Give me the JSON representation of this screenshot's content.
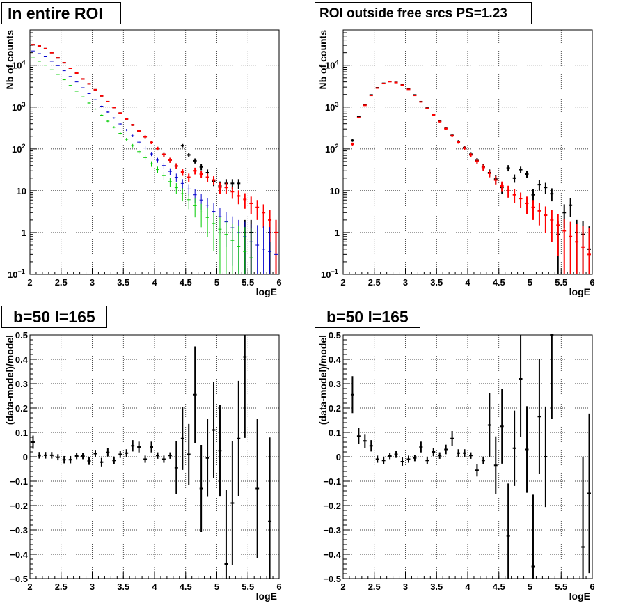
{
  "panels": [
    {
      "title": "In entire ROI",
      "xlabel": "logE",
      "ylabel": "Nb of counts",
      "scale": "log",
      "ylim": [
        0.1,
        70000
      ],
      "xlim": [
        2,
        6
      ],
      "grid": true,
      "xticks": [
        "2",
        "2.5",
        "3",
        "3.5",
        "4",
        "4.5",
        "5",
        "5.5",
        "6"
      ],
      "yticks": [
        {
          "v": 0.1,
          "base": "10",
          "exp": "−1"
        },
        {
          "v": 1,
          "text": "1"
        },
        {
          "v": 10,
          "text": "10"
        },
        {
          "v": 100,
          "base": "10",
          "exp": "2"
        },
        {
          "v": 1000,
          "base": "10",
          "exp": "3"
        },
        {
          "v": 10000,
          "base": "10",
          "exp": "4"
        }
      ]
    },
    {
      "title": "ROI outside free srcs PS=1.23",
      "xlabel": "logE",
      "ylabel": "Nb of counts",
      "scale": "log",
      "ylim": [
        0.1,
        70000
      ],
      "xlim": [
        2,
        6
      ],
      "grid": true,
      "xticks": [
        "2",
        "2.5",
        "3",
        "3.5",
        "4",
        "4.5",
        "5",
        "5.5",
        "6"
      ],
      "yticks": [
        {
          "v": 0.1,
          "base": "10",
          "exp": "−1"
        },
        {
          "v": 1,
          "text": "1"
        },
        {
          "v": 10,
          "text": "10"
        },
        {
          "v": 100,
          "base": "10",
          "exp": "2"
        },
        {
          "v": 1000,
          "base": "10",
          "exp": "3"
        },
        {
          "v": 10000,
          "base": "10",
          "exp": "4"
        }
      ]
    },
    {
      "title": "b=50 l=165",
      "xlabel": "logE",
      "ylabel": "(data-model)/model",
      "scale": "linear",
      "ylim": [
        -0.5,
        0.5
      ],
      "xlim": [
        2,
        6
      ],
      "grid": true,
      "xticks": [
        "2",
        "2.5",
        "3",
        "3.5",
        "4",
        "4.5",
        "5",
        "5.5",
        "6"
      ],
      "yticks": [
        "−0.5",
        "−0.4",
        "−0.3",
        "−0.2",
        "−0.1",
        "0",
        "0.1",
        "0.2",
        "0.3",
        "0.4",
        "0.5"
      ]
    },
    {
      "title": "b=50 l=165",
      "xlabel": "logE",
      "ylabel": "(data-model)/model",
      "scale": "linear",
      "ylim": [
        -0.5,
        0.5
      ],
      "xlim": [
        2,
        6
      ],
      "grid": true,
      "xticks": [
        "2",
        "2.5",
        "3",
        "3.5",
        "4",
        "4.5",
        "5",
        "5.5",
        "6"
      ],
      "yticks": [
        "−0.5",
        "−0.4",
        "−0.3",
        "−0.2",
        "−0.1",
        "0",
        "0.1",
        "0.2",
        "0.3",
        "0.4",
        "0.5"
      ]
    }
  ],
  "chart_data": [
    {
      "type": "scatter",
      "title": "In entire ROI",
      "xlabel": "logE",
      "ylabel": "Nb of counts",
      "xlim": [
        2,
        6
      ],
      "ylim": [
        0.1,
        70000
      ],
      "yscale": "log",
      "x": [
        2.05,
        2.15,
        2.25,
        2.35,
        2.45,
        2.55,
        2.65,
        2.75,
        2.85,
        2.95,
        3.05,
        3.15,
        3.25,
        3.35,
        3.45,
        3.55,
        3.65,
        3.75,
        3.85,
        3.95,
        4.05,
        4.15,
        4.25,
        4.35,
        4.45,
        4.55,
        4.65,
        4.75,
        4.85,
        4.95,
        5.05,
        5.15,
        5.25,
        5.35,
        5.45,
        5.55,
        5.65,
        5.75,
        5.85,
        5.95
      ],
      "series": [
        {
          "color": "#000000",
          "values": [
            31000,
            29000,
            25000,
            20000,
            15000,
            11500,
            8500,
            6500,
            4700,
            3600,
            2600,
            1850,
            1350,
            980,
            720,
            520,
            375,
            270,
            195,
            142,
            102,
            74,
            54,
            39,
            120,
            72,
            52,
            37,
            27,
            17,
            13,
            15,
            15,
            15,
            1,
            1,
            null,
            null,
            1,
            1
          ]
        },
        {
          "color": "#ff0000",
          "values": [
            31000,
            29000,
            25000,
            20000,
            15000,
            11500,
            8500,
            6500,
            4700,
            3600,
            2600,
            1850,
            1350,
            980,
            720,
            520,
            375,
            270,
            195,
            142,
            102,
            74,
            54,
            39,
            28,
            21,
            30,
            25,
            21,
            18,
            12,
            12,
            9.5,
            7.5,
            6.2,
            5,
            4,
            3,
            2,
            1
          ]
        },
        {
          "color": "#0000cc",
          "values": [
            22000,
            19000,
            16000,
            12500,
            9800,
            7400,
            5400,
            4000,
            2900,
            2100,
            1500,
            1050,
            760,
            550,
            395,
            285,
            205,
            145,
            105,
            76,
            54,
            40,
            29,
            21,
            15,
            11,
            8,
            6,
            4.5,
            3.2,
            2.4,
            1.8,
            1.3,
            1,
            0.8,
            0.6,
            0.5,
            0.4,
            0.35,
            0.3
          ]
        },
        {
          "color": "#00cc00",
          "values": [
            15000,
            12500,
            10000,
            7800,
            6000,
            4500,
            3300,
            2400,
            1750,
            1250,
            900,
            640,
            460,
            330,
            235,
            170,
            120,
            86,
            62,
            44,
            32,
            23,
            16.5,
            11.8,
            8.5,
            6.1,
            4.4,
            3.1,
            2.3,
            1.65,
            1.2,
            0.9,
            0.65,
            0.47,
            0.35,
            0.25,
            null,
            null,
            null,
            null
          ]
        }
      ]
    },
    {
      "type": "scatter",
      "title": "ROI outside free srcs PS=1.23",
      "xlabel": "logE",
      "ylabel": "Nb of counts",
      "xlim": [
        2,
        6
      ],
      "ylim": [
        0.1,
        70000
      ],
      "yscale": "log",
      "x": [
        2.15,
        2.25,
        2.35,
        2.45,
        2.55,
        2.65,
        2.75,
        2.85,
        2.95,
        3.05,
        3.15,
        3.25,
        3.35,
        3.45,
        3.55,
        3.65,
        3.75,
        3.85,
        3.95,
        4.05,
        4.15,
        4.25,
        4.35,
        4.45,
        4.55,
        4.65,
        4.75,
        4.85,
        4.95,
        5.05,
        5.15,
        5.25,
        5.35,
        5.45,
        5.55,
        5.65,
        5.75,
        5.85,
        5.95
      ],
      "series": [
        {
          "color": "#000000",
          "values": [
            160,
            600,
            1150,
            1950,
            2900,
            3700,
            4100,
            3900,
            3400,
            2700,
            1950,
            1350,
            950,
            660,
            460,
            310,
            210,
            150,
            108,
            75,
            53,
            37,
            27,
            19,
            12,
            35,
            20,
            32,
            25,
            8,
            14,
            12,
            8.5,
            0.9,
            3,
            4.5,
            1,
            0.9,
            0.4
          ]
        },
        {
          "color": "#ff0000",
          "values": [
            130,
            560,
            1100,
            1900,
            2850,
            3650,
            4050,
            3850,
            3350,
            2650,
            1900,
            1330,
            930,
            650,
            450,
            305,
            205,
            145,
            104,
            72,
            51,
            36,
            26,
            18,
            13,
            10,
            8,
            6.5,
            5,
            4,
            3.3,
            2.6,
            2,
            1.5,
            1.1,
            0.8,
            0.6,
            0.45,
            0.3
          ]
        }
      ]
    },
    {
      "type": "scatter",
      "title": "b=50 l=165",
      "xlabel": "logE",
      "ylabel": "(data-model)/model",
      "xlim": [
        2,
        6
      ],
      "ylim": [
        -0.5,
        0.5
      ],
      "x": [
        2.05,
        2.15,
        2.25,
        2.35,
        2.45,
        2.55,
        2.65,
        2.75,
        2.85,
        2.95,
        3.05,
        3.15,
        3.25,
        3.35,
        3.45,
        3.55,
        3.65,
        3.75,
        3.85,
        3.95,
        4.05,
        4.15,
        4.25,
        4.35,
        4.45,
        4.55,
        4.65,
        4.75,
        4.85,
        4.95,
        5.05,
        5.15,
        5.25,
        5.35,
        5.45,
        5.55,
        5.65,
        5.75,
        5.85,
        5.95
      ],
      "series": [
        {
          "color": "#000000",
          "values": [
            0.06,
            0.006,
            0.006,
            0.006,
            -0.002,
            -0.012,
            -0.012,
            0.003,
            0.003,
            -0.017,
            0.013,
            -0.022,
            0.018,
            -0.015,
            0.01,
            0.015,
            0.045,
            0.04,
            -0.01,
            0.04,
            0.005,
            -0.01,
            0.005,
            -0.045,
            0.075,
            0.01,
            0.255,
            -0.13,
            -0.005,
            0.11,
            0.025,
            -0.44,
            -0.19,
            0.075,
            0.41,
            null,
            -0.13,
            null,
            -0.265,
            null
          ]
        }
      ]
    },
    {
      "type": "scatter",
      "title": "b=50 l=165",
      "xlabel": "logE",
      "ylabel": "(data-model)/model",
      "xlim": [
        2,
        6
      ],
      "ylim": [
        -0.5,
        0.5
      ],
      "x": [
        2.15,
        2.25,
        2.35,
        2.45,
        2.55,
        2.65,
        2.75,
        2.85,
        2.95,
        3.05,
        3.15,
        3.25,
        3.35,
        3.45,
        3.55,
        3.65,
        3.75,
        3.85,
        3.95,
        4.05,
        4.15,
        4.25,
        4.35,
        4.45,
        4.55,
        4.65,
        4.75,
        4.85,
        4.95,
        5.05,
        5.15,
        5.25,
        5.35,
        5.45,
        5.55,
        5.65,
        5.75,
        5.85,
        5.95
      ],
      "series": [
        {
          "color": "#000000",
          "values": [
            0.255,
            0.085,
            0.065,
            0.045,
            -0.01,
            -0.015,
            0.003,
            0.01,
            -0.02,
            -0.01,
            -0.005,
            0.04,
            -0.015,
            0.02,
            0.005,
            0.03,
            0.075,
            0.015,
            0.015,
            0.005,
            -0.055,
            -0.015,
            0.13,
            -0.035,
            0.125,
            -0.325,
            0.035,
            0.32,
            0.03,
            -0.45,
            0.165,
            0.0,
            0.5,
            null,
            null,
            null,
            null,
            -0.37,
            -0.15
          ]
        }
      ]
    }
  ]
}
